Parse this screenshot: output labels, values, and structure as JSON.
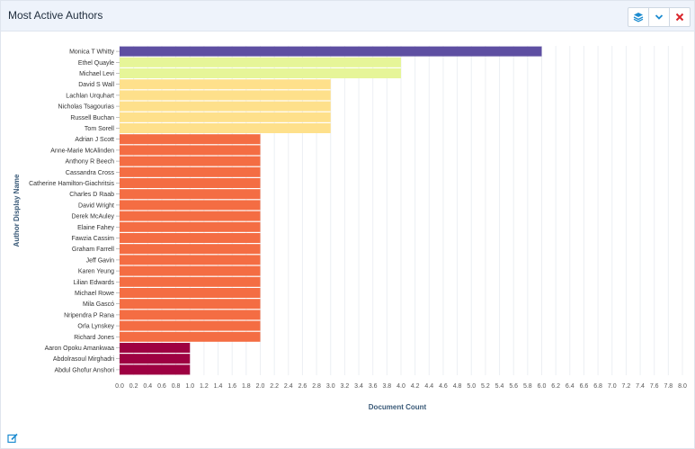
{
  "panel": {
    "title": "Most Active Authors"
  },
  "toolbar": {
    "layers_icon": "layers-icon",
    "collapse_icon": "chevron-down-icon",
    "close_icon": "close-icon",
    "edit_icon": "edit-icon"
  },
  "chart_data": {
    "type": "bar",
    "orientation": "horizontal",
    "xlabel": "Document Count",
    "ylabel": "Author Display Name",
    "xlim": [
      0,
      8
    ],
    "x_ticks": [
      "0.0",
      "0.2",
      "0.4",
      "0.6",
      "0.8",
      "1.0",
      "1.2",
      "1.4",
      "1.6",
      "1.8",
      "2.0",
      "2.2",
      "2.4",
      "2.6",
      "2.8",
      "3.0",
      "3.2",
      "3.4",
      "3.6",
      "3.8",
      "4.0",
      "4.2",
      "4.4",
      "4.6",
      "4.8",
      "5.0",
      "5.2",
      "5.4",
      "5.6",
      "5.8",
      "6.0",
      "6.2",
      "6.4",
      "6.6",
      "6.8",
      "7.0",
      "7.2",
      "7.4",
      "7.6",
      "7.8",
      "8.0"
    ],
    "grid": true,
    "categories": [
      "Monica T Whitty",
      "Ethel Quayle",
      "Michael Levi",
      "David S Wall",
      "Lachlan Urquhart",
      "Nicholas Tsagourias",
      "Russell Buchan",
      "Tom Sorell",
      "Adrian J Scott",
      "Anne-Marie McAlinden",
      "Anthony R Beech",
      "Cassandra Cross",
      "Catherine Hamilton-Giachritsis",
      "Charles D Raab",
      "David Wright",
      "Derek McAuley",
      "Elaine Fahey",
      "Fawzia Cassim",
      "Graham Farrell",
      "Jeff Gavin",
      "Karen Yeung",
      "Lilian Edwards",
      "Michael Rowe",
      "Mila Gascó",
      "Nripendra P Rana",
      "Orla Lynskey",
      "Richard Jones",
      "Aaron Opoku Amankwaa",
      "Abdolrasoul Mirghadri",
      "Abdul Ghofur Anshori"
    ],
    "values": [
      6,
      4,
      4,
      3,
      3,
      3,
      3,
      3,
      2,
      2,
      2,
      2,
      2,
      2,
      2,
      2,
      2,
      2,
      2,
      2,
      2,
      2,
      2,
      2,
      2,
      2,
      2,
      1,
      1,
      1
    ],
    "color_scale": {
      "6": "#5e4fa2",
      "4": "#e6f598",
      "3": "#fee08b",
      "2": "#f46d43",
      "1": "#9e0142"
    }
  }
}
